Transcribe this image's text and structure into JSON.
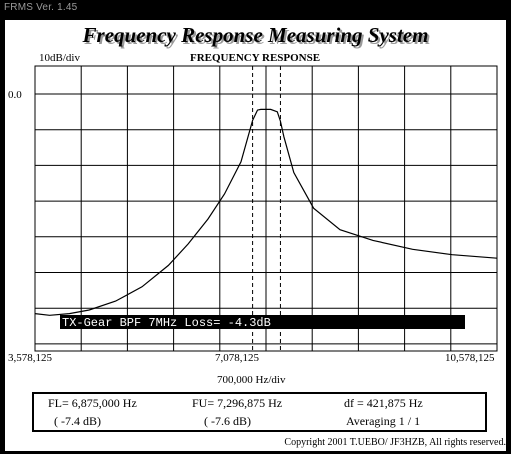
{
  "window": {
    "title": "FRMS Ver. 1.45"
  },
  "header": {
    "title": "Frequency Response Measuring System"
  },
  "chart": {
    "title": "FREQUENCY RESPONSE",
    "y_scale": "10dB/div",
    "y_top_label": "0.0",
    "x_labels": {
      "left": "3,578,125",
      "center": "7,078,125",
      "right": "10,578,125"
    },
    "x_scale": "700,000  Hz/div",
    "banner": "TX-Gear  BPF  7MHz  Loss= -4.3dB",
    "colors": {
      "background": "#ffffff",
      "grid": "#000000",
      "trace": "#000000",
      "banner_bg": "#000000",
      "banner_fg": "#ffffff"
    }
  },
  "chart_data": {
    "type": "line",
    "title": "FREQUENCY RESPONSE",
    "xlabel": "700,000  Hz/div",
    "ylabel": "10dB/div",
    "xlim": [
      3578125,
      10578125
    ],
    "ylim": [
      -80,
      0
    ],
    "grid": true,
    "series": [
      {
        "x": [
          3578125,
          3800000,
          4100000,
          4400000,
          4800000,
          5200000,
          5600000,
          5900000,
          6200000,
          6450000,
          6700000,
          6875000,
          6950000,
          7000000,
          7050000,
          7150000,
          7250000,
          7296875,
          7350000,
          7500000,
          7800000,
          8200000,
          8700000,
          9300000,
          9900000,
          10578125
        ],
        "y": [
          -61.5,
          -62,
          -61.5,
          -60.5,
          -58,
          -54,
          -48,
          -42,
          -35,
          -28,
          -19,
          -7.4,
          -4.5,
          -4.3,
          -4.3,
          -4.3,
          -5,
          -7.6,
          -12,
          -22,
          -32,
          -38,
          -41,
          -43.5,
          -45,
          -46
        ]
      }
    ],
    "markers": {
      "FL": 6875000,
      "FU": 7296875,
      "center": 7078125
    }
  },
  "info": {
    "fl_label": "FL= 6,875,000  Hz",
    "fl_db": "( -7.4 dB)",
    "fu_label": "FU= 7,296,875  Hz",
    "fu_db": "( -7.6 dB)",
    "df_label": "df = 421,875  Hz",
    "averaging": "Averaging   1 / 1"
  },
  "footer": {
    "copyright": "Copyright 2001 T.UEBO/ JF3HZB, All rights reserved."
  }
}
